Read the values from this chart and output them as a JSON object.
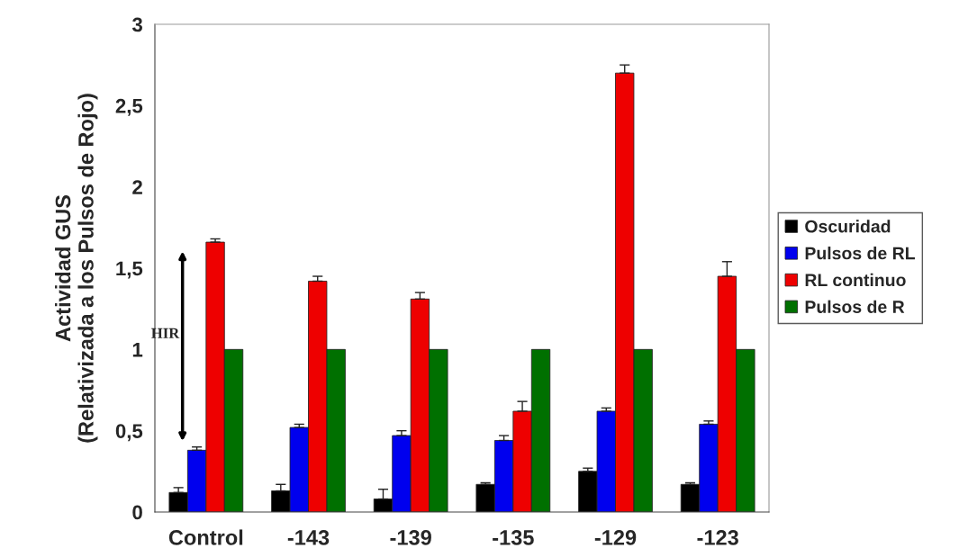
{
  "chart_data": {
    "type": "bar",
    "ylabel": "Actividad GUS\n(Relativizada a los Pulsos de Rojo)",
    "categories": [
      "Control",
      "-143",
      "-139",
      "-135",
      "-129",
      "-123"
    ],
    "series": [
      {
        "name": "Oscuridad",
        "color": "#000000",
        "values": [
          0.12,
          0.13,
          0.08,
          0.17,
          0.25,
          0.17
        ],
        "errors": [
          [
            0.12,
            0.15
          ],
          [
            0.13,
            0.17
          ],
          [
            0.08,
            0.14
          ],
          [
            0.17,
            0.18
          ],
          [
            0.25,
            0.27
          ],
          [
            0.17,
            0.18
          ]
        ]
      },
      {
        "name": "Pulsos de RL",
        "color": "#0000ee",
        "values": [
          0.38,
          0.52,
          0.47,
          0.44,
          0.62,
          0.54
        ],
        "errors": [
          [
            0.38,
            0.4
          ],
          [
            0.52,
            0.54
          ],
          [
            0.47,
            0.5
          ],
          [
            0.44,
            0.47
          ],
          [
            0.62,
            0.64
          ],
          [
            0.54,
            0.56
          ]
        ]
      },
      {
        "name": "RL continuo",
        "color": "#ee0000",
        "values": [
          1.66,
          1.42,
          1.31,
          0.62,
          2.7,
          1.45
        ],
        "errors": [
          [
            1.66,
            1.68
          ],
          [
            1.42,
            1.45
          ],
          [
            1.31,
            1.35
          ],
          [
            0.62,
            0.68
          ],
          [
            2.7,
            2.75
          ],
          [
            1.45,
            1.54
          ]
        ]
      },
      {
        "name": "Pulsos de R",
        "color": "#007000",
        "values": [
          1,
          1,
          1,
          1,
          1,
          1
        ]
      }
    ],
    "ylim": [
      0,
      3
    ],
    "yticks": [
      0,
      {
        "value": 0.5,
        "label": "0,5"
      },
      1,
      {
        "value": 1.5,
        "label": "1,5"
      },
      2,
      {
        "value": 2.5,
        "label": "2,5"
      },
      3
    ],
    "annotations": [
      {
        "text": "HIR",
        "x": "Control",
        "y": 1.05
      }
    ],
    "legend": "right",
    "grid": false
  }
}
